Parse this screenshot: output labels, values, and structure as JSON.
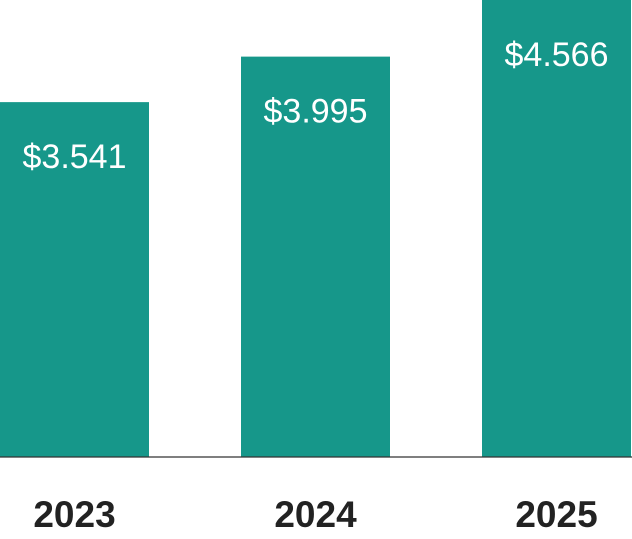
{
  "chart_data": {
    "type": "bar",
    "categories": [
      "2023",
      "2024",
      "2025"
    ],
    "values": [
      3.541,
      3.995,
      4.566
    ],
    "value_labels": [
      "$3.541",
      "$3.995",
      "$4.566"
    ],
    "color": "#16978a",
    "ylim": [
      0,
      4.56
    ]
  }
}
